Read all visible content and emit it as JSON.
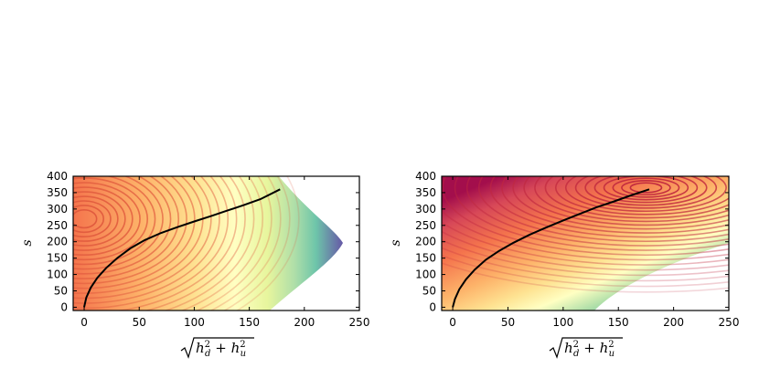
{
  "chart_data": [
    {
      "type": "contour",
      "xlabel": "√(h_d² + h_u²)",
      "ylabel": "s",
      "xlim": [
        -10,
        250
      ],
      "ylim": [
        -10,
        400
      ],
      "xticks": [
        0,
        50,
        100,
        150,
        200,
        250
      ],
      "yticks": [
        0,
        50,
        100,
        150,
        200,
        250,
        300,
        350,
        400
      ],
      "colormap": "Spectral",
      "contour_line_color": "#e05a3e",
      "filled_region": "outer region bounded on the right by a curved boundary peaking near x≈235 at s≈200",
      "contour_minimum": {
        "x": 0,
        "s": 270
      },
      "curve": {
        "color": "#000000",
        "x": [
          0,
          2,
          6,
          12,
          20,
          30,
          42,
          55,
          70,
          85,
          100,
          115,
          130,
          145,
          160,
          178
        ],
        "s": [
          0,
          30,
          60,
          90,
          120,
          150,
          180,
          205,
          227,
          245,
          262,
          278,
          295,
          312,
          330,
          360
        ]
      }
    },
    {
      "type": "contour",
      "xlabel": "√(h_d² + h_u²)",
      "ylabel": "s",
      "xlim": [
        -10,
        250
      ],
      "ylim": [
        -10,
        400
      ],
      "xticks": [
        0,
        50,
        100,
        150,
        200,
        250
      ],
      "yticks": [
        0,
        50,
        100,
        150,
        200,
        250,
        300,
        350,
        400
      ],
      "colormap": "Spectral",
      "contour_line_color": "#c0283f",
      "filled_region": "lower-right band under a boundary running from x≈135 at s=0 to x≈250 at s≈200",
      "contour_minimum": {
        "x": 175,
        "s": 365
      },
      "curve": {
        "color": "#000000",
        "x": [
          0,
          2,
          6,
          12,
          20,
          30,
          42,
          55,
          70,
          85,
          100,
          115,
          130,
          145,
          160,
          178
        ],
        "s": [
          0,
          25,
          55,
          85,
          115,
          145,
          172,
          197,
          222,
          244,
          265,
          285,
          305,
          322,
          340,
          360
        ]
      }
    }
  ]
}
